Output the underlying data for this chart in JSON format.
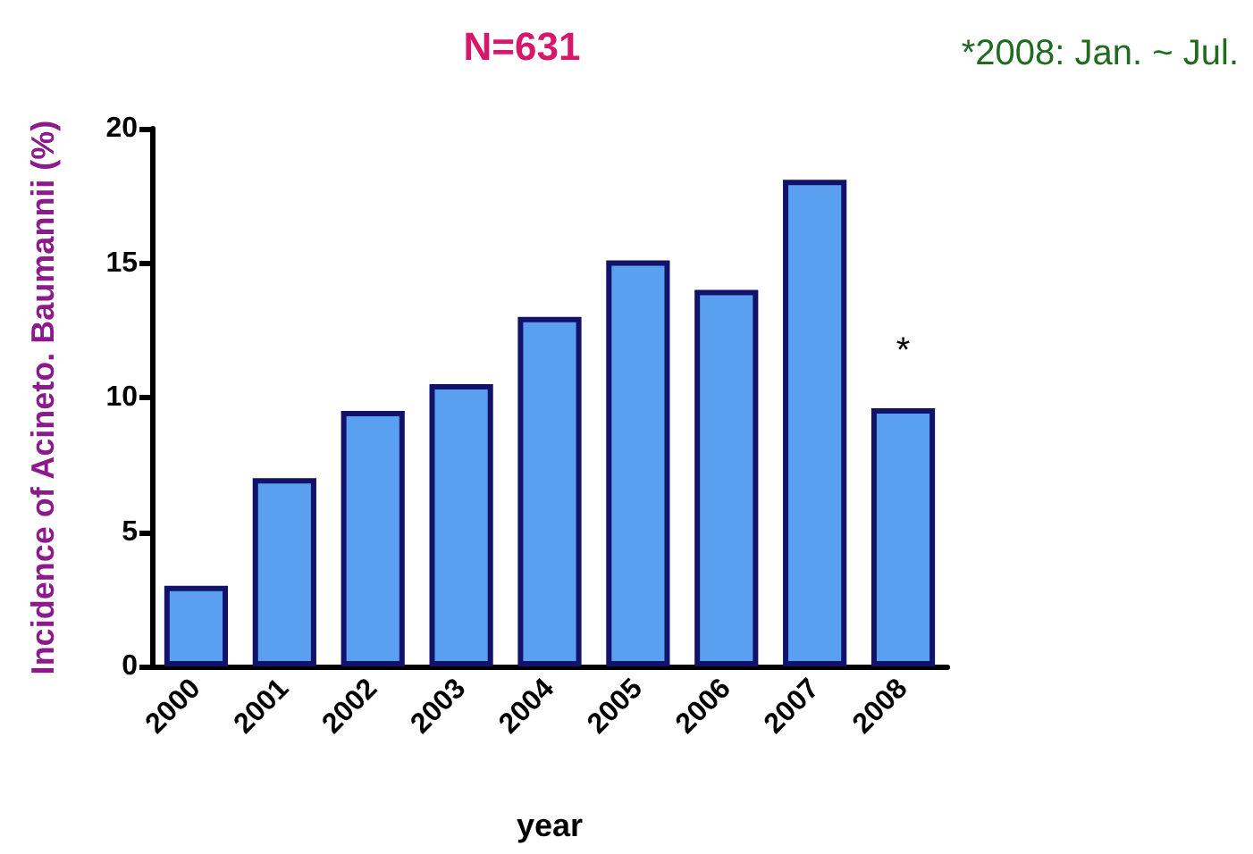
{
  "chart_data": {
    "type": "bar",
    "title": "N=631",
    "xlabel": "year",
    "ylabel": "Incidence of Acineto. Baumannii (%)",
    "categories": [
      "2000",
      "2001",
      "2002",
      "2003",
      "2004",
      "2005",
      "2006",
      "2007",
      "2008"
    ],
    "values": [
      3,
      7,
      9.5,
      10.5,
      13,
      15.1,
      14,
      18.1,
      9.6
    ],
    "color": "#5aa0f0",
    "ylim": [
      0,
      20
    ],
    "yticks": [
      0,
      5,
      10,
      15,
      20
    ],
    "grid": false,
    "annotations": [
      "*2008: Jan. ~ Jul.",
      {
        "text": "*",
        "x": "2008",
        "y": 9.6
      }
    ]
  }
}
